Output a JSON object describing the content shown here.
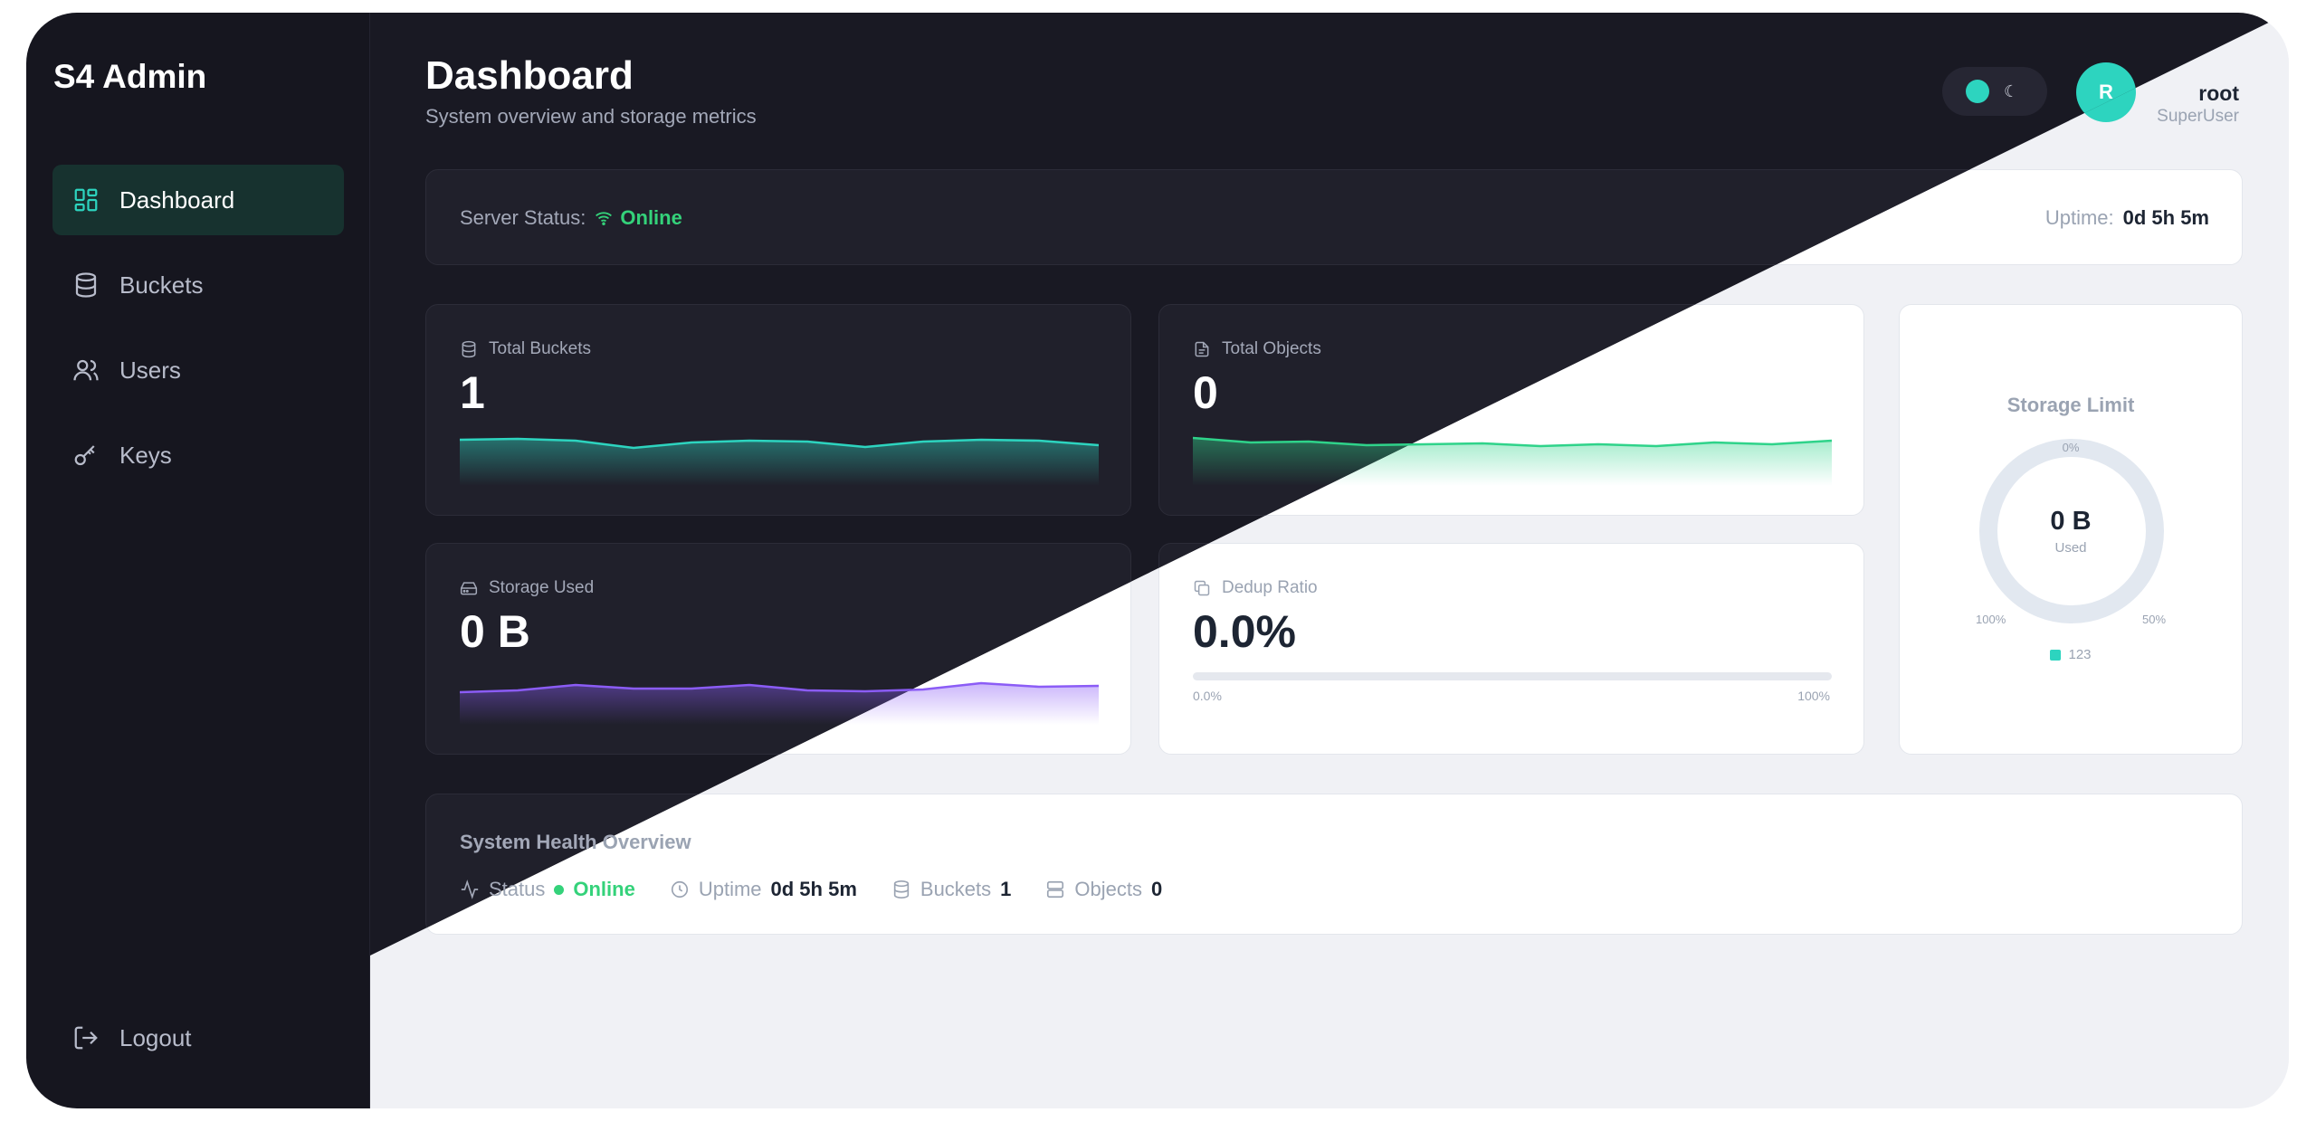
{
  "app": {
    "brand": "S4 Admin"
  },
  "sidebar": {
    "items": [
      {
        "label": "Dashboard",
        "icon": "dashboard-icon",
        "active": true
      },
      {
        "label": "Buckets",
        "icon": "database-icon"
      },
      {
        "label": "Users",
        "icon": "users-icon"
      },
      {
        "label": "Keys",
        "icon": "key-icon"
      }
    ],
    "logout": "Logout"
  },
  "header": {
    "title": "Dashboard",
    "subtitle": "System overview and storage metrics",
    "toggle_glyph": "☾",
    "avatar_initial": "R",
    "user_name": "root",
    "user_role": "SuperUser"
  },
  "status": {
    "label": "Server Status:",
    "value": "Online",
    "uptime_label": "Uptime:",
    "uptime_value": "0d 5h 5m"
  },
  "stats": {
    "total_buckets": {
      "label": "Total Buckets",
      "value": "1"
    },
    "total_objects": {
      "label": "Total Objects",
      "value": "0"
    },
    "storage_used": {
      "label": "Storage Used",
      "value": "0 B"
    },
    "dedup_ratio": {
      "label": "Dedup Ratio",
      "value": "0.0%",
      "min": "0.0%",
      "max": "100%",
      "fraction": 0.0
    }
  },
  "storage_limit": {
    "title": "Storage Limit",
    "center_value": "0 B",
    "center_label": "Used",
    "tick_0": "0%",
    "tick_50": "50%",
    "tick_100": "100%",
    "legend": "123",
    "fraction_used": 0.0
  },
  "health": {
    "title": "System Health Overview",
    "status_label": "Status",
    "status_value": "Online",
    "uptime_label": "Uptime",
    "uptime_value": "0d 5h 5m",
    "buckets_label": "Buckets",
    "buckets_value": "1",
    "objects_label": "Objects",
    "objects_value": "0"
  },
  "colors": {
    "accent": "#2dd4bf",
    "online": "#34d27a",
    "objects_line": "#2fd38a",
    "storage_line": "#8b5cf6"
  }
}
